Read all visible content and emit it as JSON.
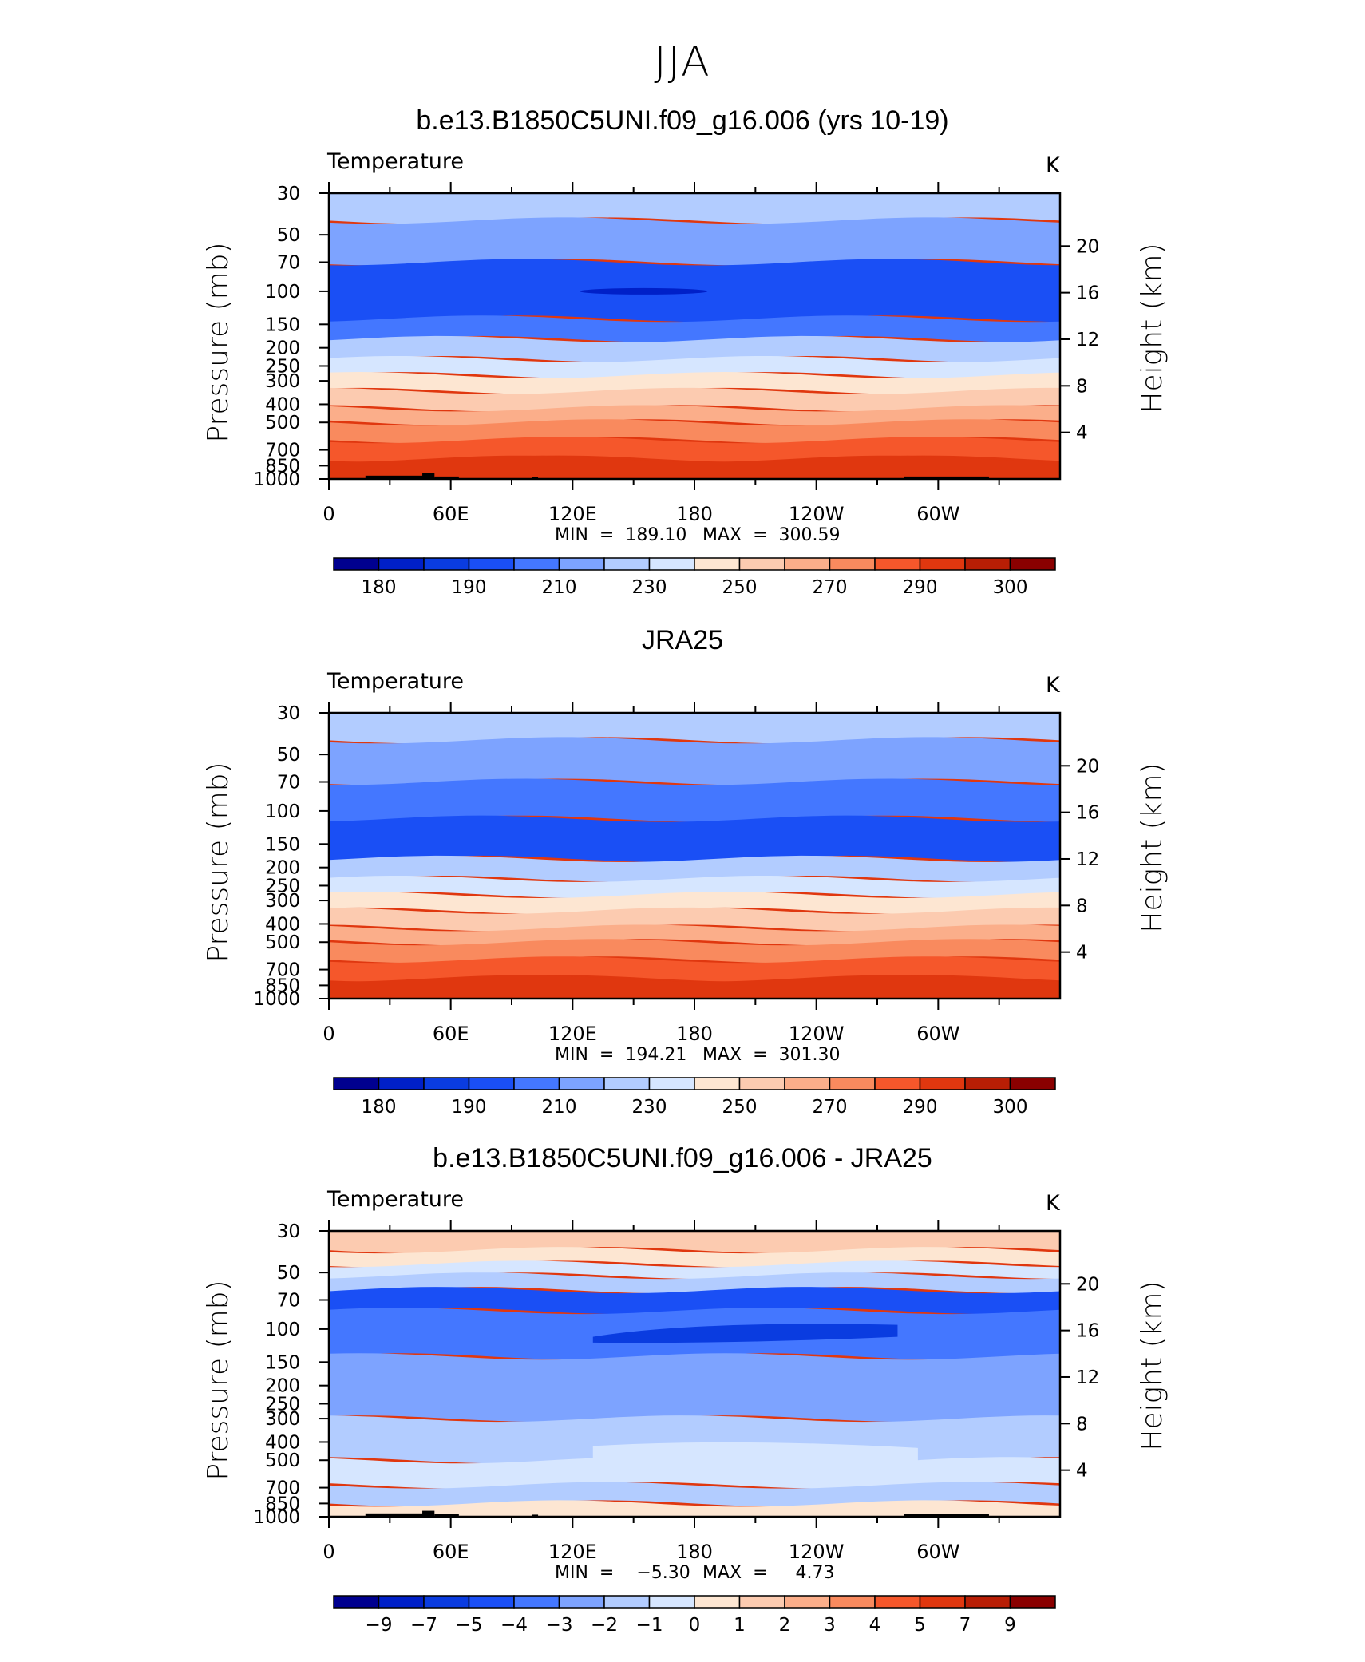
{
  "figure": {
    "title": "JJA"
  },
  "panels": [
    {
      "title": "b.e13.B1850C5UNI.f09_g16.006 (yrs 10-19)",
      "left_string": "Temperature",
      "right_string": "K",
      "min_text": "MIN  =  189.10",
      "max_text": "MAX  =  300.59"
    },
    {
      "title": "JRA25",
      "left_string": "Temperature",
      "right_string": "K",
      "min_text": "MIN  =  194.21",
      "max_text": "MAX  =  301.30"
    },
    {
      "title": "b.e13.B1850C5UNI.f09_g16.006 - JRA25",
      "left_string": "Temperature",
      "right_string": "K",
      "min_text": "MIN  =    −5.30",
      "max_text": "MAX  =     4.73"
    }
  ],
  "axes": {
    "ylabel": "Pressure (mb)",
    "y2label": "Height (km)",
    "pressure_ticks": [
      "30",
      "50",
      "70",
      "100",
      "150",
      "200",
      "250",
      "300",
      "400",
      "500",
      "700",
      "850",
      "1000"
    ],
    "height_ticks": [
      "20",
      "16",
      "12",
      "8",
      "4"
    ],
    "lon_ticks": [
      "0",
      "60E",
      "120E",
      "180",
      "120W",
      "60W"
    ]
  },
  "colorbars": {
    "temperature_labels": [
      "180",
      "190",
      "210",
      "230",
      "250",
      "270",
      "290",
      "300"
    ],
    "difference_labels": [
      "−9",
      "−7",
      "−5",
      "−4",
      "−3",
      "−2",
      "−1",
      "0",
      "1",
      "2",
      "3",
      "4",
      "5",
      "7",
      "9"
    ]
  },
  "colors": {
    "palette": [
      "#00008f",
      "#0020c8",
      "#0a3ce0",
      "#1a4ff5",
      "#4477ff",
      "#7da3ff",
      "#b2ccff",
      "#d6e6ff",
      "#fde6d2",
      "#fccbb0",
      "#fbae8a",
      "#f98a5e",
      "#f5572b",
      "#e0370f",
      "#b81e05",
      "#8a0000"
    ]
  },
  "chart_data": [
    {
      "type": "contour",
      "title": "b.e13.B1850C5UNI.f09_g16.006 (yrs 10-19)",
      "variable": "Temperature",
      "units": "K",
      "x": "longitude",
      "xlim": [
        0,
        360
      ],
      "y": "pressure (mb)",
      "ylim": [
        1000,
        30
      ],
      "yscale": "log",
      "contour_levels": [
        175,
        180,
        185,
        190,
        200,
        210,
        220,
        230,
        240,
        250,
        260,
        270,
        280,
        290,
        295,
        300
      ],
      "min": 189.1,
      "max": 300.59,
      "bands_top_to_bottom": [
        {
          "p_top": 30,
          "p_bottom": 42,
          "level": "~215"
        },
        {
          "p_top": 42,
          "p_bottom": 70,
          "level": "~205"
        },
        {
          "p_top": 70,
          "p_bottom": 140,
          "level": "~195"
        },
        {
          "p_top": 140,
          "p_bottom": 180,
          "level": "~205"
        },
        {
          "p_top": 180,
          "p_bottom": 230,
          "level": "~215"
        },
        {
          "p_top": 230,
          "p_bottom": 280,
          "level": "~225"
        },
        {
          "p_top": 280,
          "p_bottom": 340,
          "level": "~235"
        },
        {
          "p_top": 340,
          "p_bottom": 420,
          "level": "~245"
        },
        {
          "p_top": 420,
          "p_bottom": 500,
          "level": "~255"
        },
        {
          "p_top": 500,
          "p_bottom": 620,
          "level": "~265"
        },
        {
          "p_top": 620,
          "p_bottom": 780,
          "level": "~275"
        },
        {
          "p_top": 780,
          "p_bottom": 1000,
          "level": "~285"
        }
      ]
    },
    {
      "type": "contour",
      "title": "JRA25",
      "variable": "Temperature",
      "units": "K",
      "x": "longitude",
      "xlim": [
        0,
        360
      ],
      "y": "pressure (mb)",
      "ylim": [
        1000,
        30
      ],
      "yscale": "log",
      "contour_levels": [
        175,
        180,
        185,
        190,
        200,
        210,
        220,
        230,
        240,
        250,
        260,
        270,
        280,
        290,
        295,
        300
      ],
      "min": 194.21,
      "max": 301.3
    },
    {
      "type": "contour",
      "title": "b.e13.B1850C5UNI.f09_g16.006 - JRA25",
      "variable": "Temperature",
      "units": "K",
      "x": "longitude",
      "xlim": [
        0,
        360
      ],
      "y": "pressure (mb)",
      "ylim": [
        1000,
        30
      ],
      "yscale": "log",
      "contour_levels": [
        -9,
        -7,
        -5,
        -4,
        -3,
        -2,
        -1,
        0,
        1,
        2,
        3,
        4,
        5,
        7,
        9
      ],
      "min": -5.3,
      "max": 4.73
    }
  ]
}
